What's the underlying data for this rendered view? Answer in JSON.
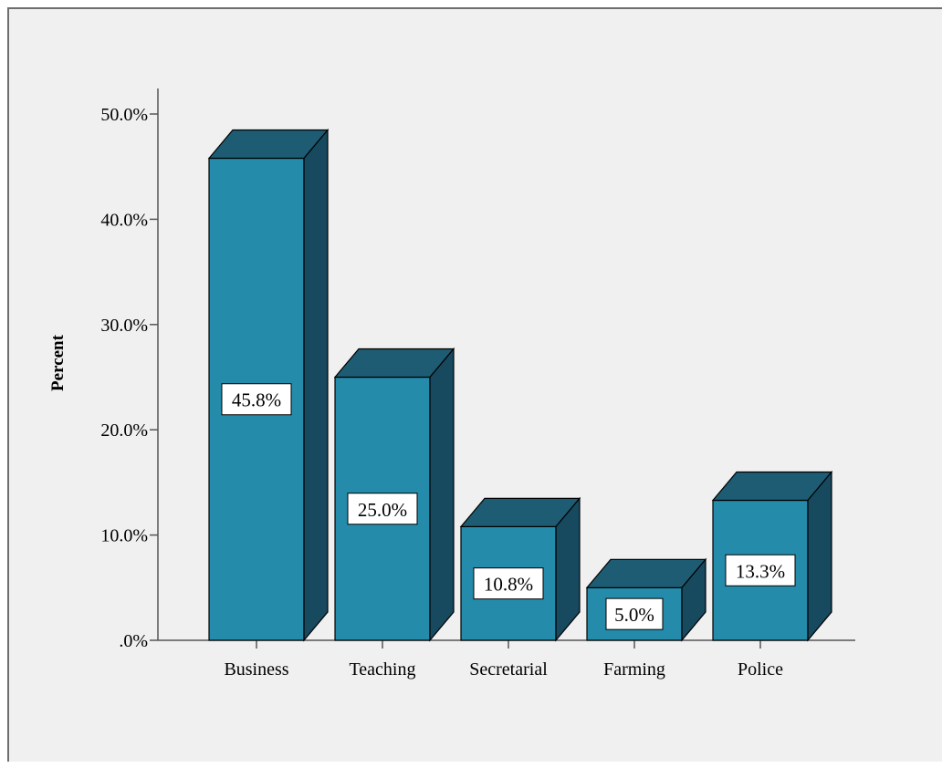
{
  "chart_data": {
    "type": "bar",
    "style": "3d-bar",
    "categories": [
      "Business",
      "Teaching",
      "Secretarial",
      "Farming",
      "Police"
    ],
    "values": [
      45.8,
      25.0,
      10.8,
      5.0,
      13.3
    ],
    "data_labels": [
      "45.8%",
      "25.0%",
      "10.8%",
      "5.0%",
      "13.3%"
    ],
    "title": "",
    "xlabel": "",
    "ylabel": "Percent",
    "ylim": [
      0,
      50
    ],
    "yticks": [
      0,
      10,
      20,
      30,
      40,
      50
    ],
    "ytick_labels": [
      ".0%",
      "10.0%",
      "20.0%",
      "30.0%",
      "40.0%",
      "50.0%"
    ],
    "grid": false,
    "legend": "none",
    "colors": {
      "bar_front": "#248bab",
      "bar_side": "#17495f",
      "bar_top": "#1d5c72",
      "outline": "#000000",
      "background": "#f0f0f0"
    }
  }
}
